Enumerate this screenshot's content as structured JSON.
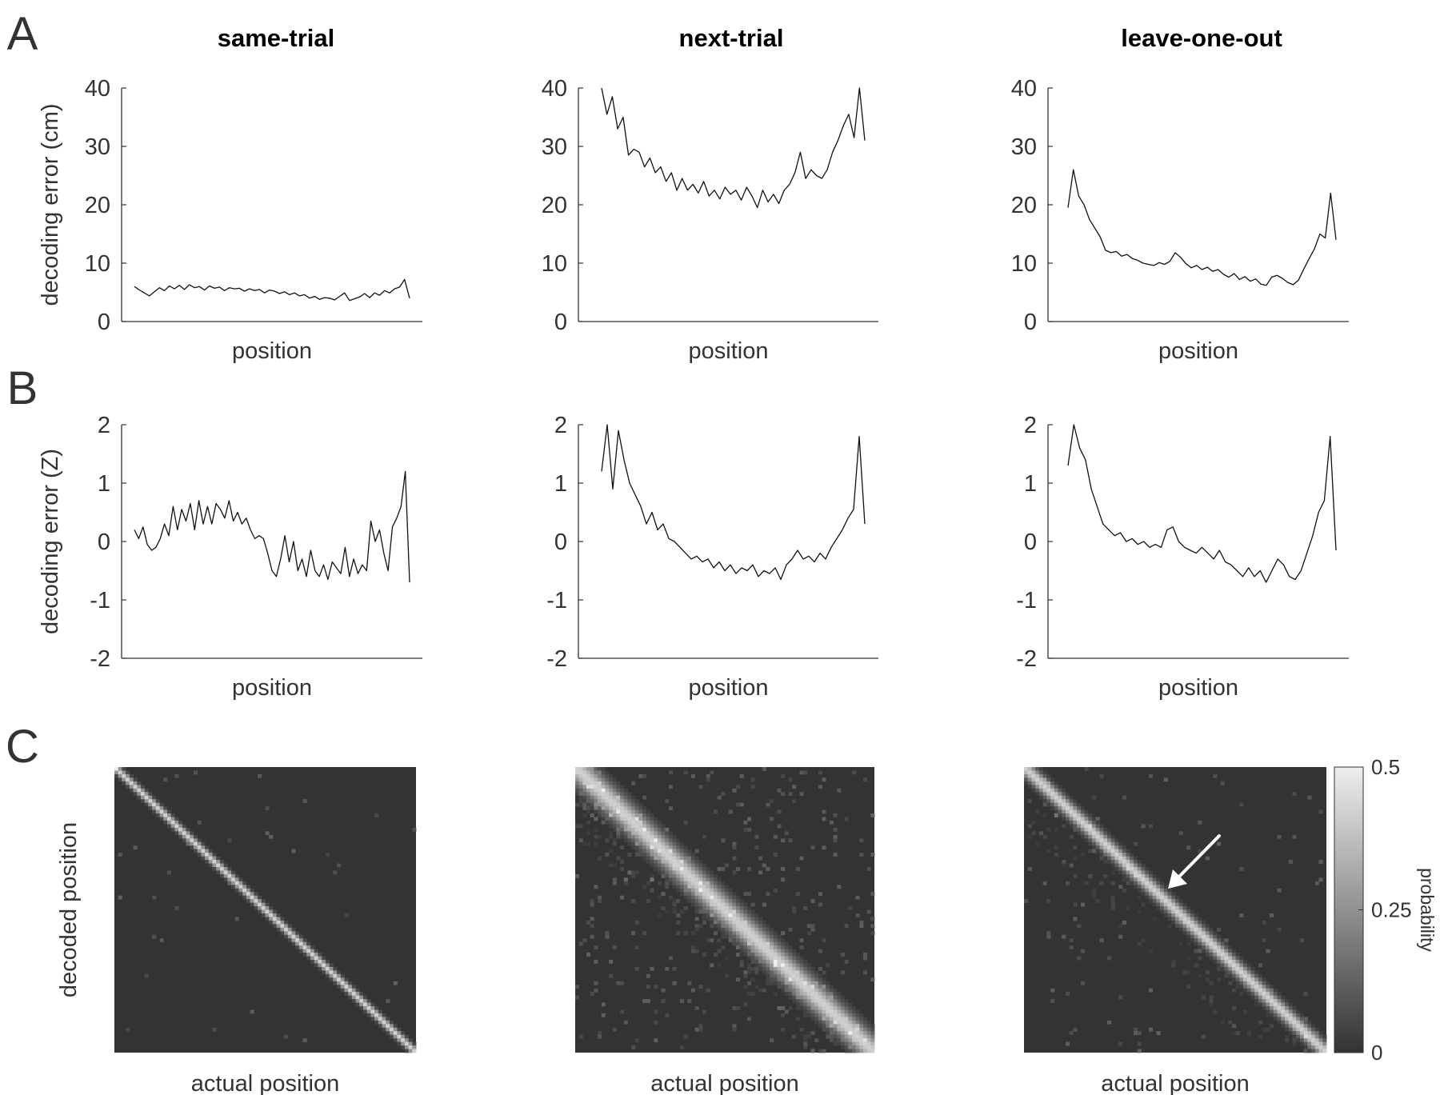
{
  "panel_letters": [
    "A",
    "B",
    "C"
  ],
  "column_titles": [
    "same-trial",
    "next-trial",
    "leave-one-out"
  ],
  "colors": {
    "line": "#111111",
    "axis": "#333333",
    "text": "#333333",
    "heatmap_background": "#333333",
    "arrow": "#ffffff"
  },
  "chart_data": [
    {
      "type": "line",
      "panel": "A",
      "title": "same-trial",
      "xlabel": "position",
      "ylabel": "decoding error (cm)",
      "ylim": [
        0,
        40
      ],
      "yticks": [
        "0",
        "10",
        "20",
        "30",
        "40"
      ],
      "series": [
        {
          "values": [
            6,
            5.4,
            4.9,
            4.4,
            5.1,
            5.8,
            5.3,
            6.1,
            5.6,
            6.2,
            5.5,
            6.3,
            5.8,
            6,
            5.4,
            6.1,
            5.7,
            5.9,
            5.3,
            5.8,
            5.6,
            5.7,
            5.2,
            5.6,
            5.3,
            5.5,
            4.9,
            5.4,
            5.2,
            4.8,
            5.1,
            4.6,
            4.9,
            4.4,
            4.6,
            4,
            4.3,
            3.8,
            4.1,
            4,
            3.7,
            4.3,
            4.9,
            3.6,
            3.9,
            4.2,
            4.8,
            4.1,
            4.9,
            4.5,
            5.3,
            4.9,
            5.6,
            5.9,
            7.2,
            4
          ]
        }
      ]
    },
    {
      "type": "line",
      "panel": "A",
      "title": "next-trial",
      "xlabel": "position",
      "ylabel": "",
      "ylim": [
        0,
        40
      ],
      "yticks": [
        "0",
        "10",
        "20",
        "30",
        "40"
      ],
      "series": [
        {
          "values": [
            40,
            35.5,
            38.5,
            33,
            35,
            28.5,
            29.5,
            29,
            26.5,
            28,
            25.5,
            26.5,
            24,
            25.5,
            22.5,
            24.5,
            22.5,
            23.5,
            22,
            24,
            21.5,
            22.5,
            21,
            23,
            21.8,
            22.5,
            20.8,
            23,
            21.5,
            19.5,
            22.5,
            20.5,
            21.8,
            20.2,
            22.5,
            23.5,
            25.5,
            29,
            24.5,
            26,
            25,
            24.5,
            26,
            29,
            31,
            33.5,
            35.5,
            31.5,
            40,
            31
          ]
        }
      ]
    },
    {
      "type": "line",
      "panel": "A",
      "title": "leave-one-out",
      "xlabel": "position",
      "ylabel": "",
      "ylim": [
        0,
        40
      ],
      "yticks": [
        "0",
        "10",
        "20",
        "30",
        "40"
      ],
      "series": [
        {
          "values": [
            19.5,
            26,
            21.5,
            20,
            17.5,
            16,
            14.5,
            12.2,
            11.8,
            12,
            11.2,
            11.5,
            10.8,
            10.5,
            10,
            9.8,
            9.6,
            10.1,
            9.8,
            10.3,
            11.8,
            11,
            9.9,
            9.2,
            9.6,
            8.9,
            9.3,
            8.6,
            8.9,
            8.1,
            7.6,
            8.2,
            7.2,
            7.7,
            6.9,
            7.3,
            6.4,
            6.2,
            7.6,
            7.9,
            7.4,
            6.7,
            6.3,
            7.1,
            9,
            10.8,
            12.5,
            15,
            14.3,
            22,
            14
          ]
        }
      ]
    },
    {
      "type": "line",
      "panel": "B",
      "title": "",
      "xlabel": "position",
      "ylabel": "decoding error (Z)",
      "ylim": [
        -2,
        2
      ],
      "yticks": [
        "-2",
        "-1",
        "0",
        "1",
        "2"
      ],
      "series": [
        {
          "values": [
            0.2,
            0.05,
            0.25,
            -0.05,
            -0.15,
            -0.1,
            0.05,
            0.3,
            0.1,
            0.6,
            0.2,
            0.55,
            0.35,
            0.65,
            0.2,
            0.7,
            0.3,
            0.6,
            0.3,
            0.65,
            0.55,
            0.4,
            0.7,
            0.35,
            0.5,
            0.3,
            0.4,
            0.2,
            0.05,
            0.1,
            0.05,
            -0.2,
            -0.5,
            -0.6,
            -0.3,
            0.1,
            -0.35,
            0,
            -0.5,
            -0.3,
            -0.6,
            -0.15,
            -0.5,
            -0.6,
            -0.4,
            -0.65,
            -0.35,
            -0.45,
            -0.55,
            -0.1,
            -0.6,
            -0.3,
            -0.55,
            -0.4,
            -0.5,
            0.35,
            0,
            0.2,
            -0.2,
            -0.5,
            0.25,
            0.4,
            0.6,
            1.2,
            -0.7
          ]
        }
      ]
    },
    {
      "type": "line",
      "panel": "B",
      "title": "",
      "xlabel": "position",
      "ylabel": "",
      "ylim": [
        -2,
        2
      ],
      "yticks": [
        "-2",
        "-1",
        "0",
        "1",
        "2"
      ],
      "series": [
        {
          "values": [
            1.2,
            2,
            0.9,
            1.9,
            1.4,
            1,
            0.8,
            0.6,
            0.3,
            0.5,
            0.2,
            0.3,
            0.05,
            0,
            -0.1,
            -0.2,
            -0.3,
            -0.25,
            -0.35,
            -0.3,
            -0.45,
            -0.35,
            -0.5,
            -0.4,
            -0.55,
            -0.45,
            -0.5,
            -0.4,
            -0.6,
            -0.5,
            -0.55,
            -0.45,
            -0.65,
            -0.4,
            -0.3,
            -0.15,
            -0.3,
            -0.25,
            -0.35,
            -0.2,
            -0.3,
            -0.1,
            0.05,
            0.2,
            0.4,
            0.55,
            1.8,
            0.3
          ]
        }
      ]
    },
    {
      "type": "line",
      "panel": "B",
      "title": "",
      "xlabel": "position",
      "ylabel": "",
      "ylim": [
        -2,
        2
      ],
      "yticks": [
        "-2",
        "-1",
        "0",
        "1",
        "2"
      ],
      "series": [
        {
          "values": [
            1.3,
            2,
            1.6,
            1.4,
            0.9,
            0.6,
            0.3,
            0.2,
            0.1,
            0.15,
            0,
            0.05,
            -0.05,
            0,
            -0.1,
            -0.05,
            -0.1,
            0.2,
            0.25,
            0,
            -0.1,
            -0.15,
            -0.2,
            -0.1,
            -0.2,
            -0.3,
            -0.15,
            -0.35,
            -0.4,
            -0.5,
            -0.6,
            -0.45,
            -0.6,
            -0.5,
            -0.7,
            -0.5,
            -0.3,
            -0.4,
            -0.6,
            -0.65,
            -0.5,
            -0.2,
            0.1,
            0.5,
            0.7,
            1.8,
            -0.15
          ]
        }
      ]
    },
    {
      "type": "heatmap",
      "panel": "C",
      "title": "",
      "xlabel": "actual position",
      "ylabel": "decoded position",
      "diagonal": "negative",
      "spread": "narrow",
      "noise": "low"
    },
    {
      "type": "heatmap",
      "panel": "C",
      "title": "",
      "xlabel": "actual position",
      "ylabel": "",
      "diagonal": "negative",
      "spread": "wide",
      "noise": "high"
    },
    {
      "type": "heatmap",
      "panel": "C",
      "title": "",
      "xlabel": "actual position",
      "ylabel": "",
      "diagonal": "negative",
      "spread": "medium",
      "noise": "medium",
      "annotation": "arrow pointing at diagonal near center",
      "colorbar": {
        "label": "probability",
        "range": [
          0,
          0.5
        ],
        "ticks": [
          "0",
          "0.25",
          "0.5"
        ],
        "colormap": "gray"
      }
    }
  ]
}
